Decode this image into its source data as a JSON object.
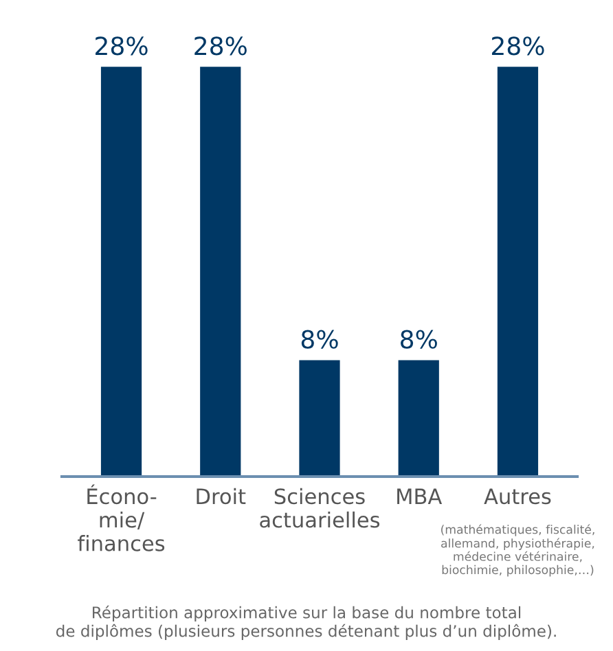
{
  "chart_data": {
    "type": "bar",
    "categories": [
      "Écono-\nmie/\nfinances",
      "Droit",
      "Sciences\nactuarielles",
      "MBA",
      "Autres"
    ],
    "values": [
      28,
      28,
      8,
      8,
      28
    ],
    "value_labels": [
      "28%",
      "28%",
      "8%",
      "8%",
      "28%"
    ],
    "color": "#003865",
    "grid": false,
    "legend": false,
    "tick_labels": "x",
    "annotations": [
      "(mathématiques, fiscalité,\nallemand, physiothérapie,\nmédecine vétérinaire,\nbiochimie, philosophie,…)",
      "Répartition approximative sur la base du nombre total\nde diplômes (plusieurs personnes détenant plus d’un diplôme)."
    ]
  }
}
